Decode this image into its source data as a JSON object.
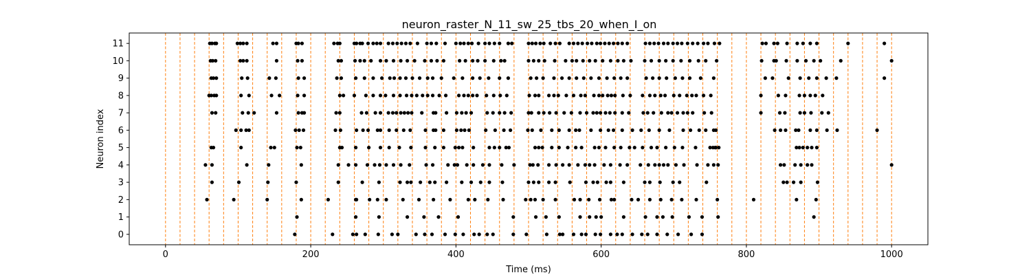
{
  "chart_data": {
    "type": "scatter",
    "title": "neuron_raster_N_11_sw_25_tbs_20_when_I_on",
    "xlabel": "Time (ms)",
    "ylabel": "Neuron index",
    "xlim": [
      -50,
      1050
    ],
    "ylim": [
      -0.6,
      11.6
    ],
    "x_ticks": [
      0,
      200,
      400,
      600,
      800,
      1000
    ],
    "x_tick_labels": [
      "0",
      "200",
      "400",
      "600",
      "800",
      "1000"
    ],
    "y_ticks": [
      0,
      1,
      2,
      3,
      4,
      5,
      6,
      7,
      8,
      9,
      10,
      11
    ],
    "y_tick_labels": [
      "0",
      "1",
      "2",
      "3",
      "4",
      "5",
      "6",
      "7",
      "8",
      "9",
      "10",
      "11"
    ],
    "grid": false,
    "legend": false,
    "colors": {
      "spikes": "#000000",
      "burst_markers": "#ff7f0e",
      "axes": "#000000"
    },
    "vertical_lines": {
      "style": "dashed",
      "x": [
        0,
        20,
        40,
        60,
        80,
        100,
        120,
        140,
        160,
        180,
        200,
        220,
        240,
        260,
        280,
        300,
        320,
        340,
        360,
        380,
        400,
        420,
        440,
        460,
        480,
        500,
        520,
        540,
        560,
        580,
        600,
        620,
        640,
        660,
        680,
        700,
        720,
        740,
        760,
        780,
        800,
        820,
        840,
        860,
        880,
        900,
        920,
        940,
        960,
        980,
        1000
      ]
    },
    "spikes": [
      {
        "neuron": 0,
        "times": [
          178,
          230,
          258,
          263,
          275,
          293,
          312,
          320,
          345,
          357,
          367,
          385,
          399,
          410,
          425,
          432,
          443,
          451,
          479,
          497,
          525,
          543,
          547,
          562,
          573,
          579,
          592,
          599,
          613,
          622,
          629,
          643,
          656,
          664,
          677,
          691,
          706,
          724,
          739
        ]
      },
      {
        "neuron": 1,
        "times": [
          181,
          262,
          294,
          333,
          356,
          376,
          403,
          479,
          510,
          524,
          542,
          571,
          584,
          593,
          600,
          631,
          661,
          677,
          685,
          698,
          721,
          739,
          761,
          893
        ]
      },
      {
        "neuron": 2,
        "times": [
          57,
          94,
          140,
          187,
          224,
          262,
          263,
          281,
          292,
          304,
          327,
          349,
          369,
          392,
          417,
          426,
          444,
          465,
          496,
          503,
          509,
          520,
          537,
          563,
          571,
          583,
          598,
          614,
          618,
          642,
          651,
          667,
          682,
          697,
          711,
          731,
          760,
          810,
          869,
          896
        ]
      },
      {
        "neuron": 3,
        "times": [
          64,
          101,
          141,
          180,
          238,
          271,
          294,
          323,
          333,
          338,
          351,
          364,
          371,
          387,
          408,
          421,
          434,
          446,
          464,
          500,
          507,
          514,
          528,
          537,
          557,
          579,
          589,
          595,
          607,
          613,
          631,
          660,
          667,
          681,
          699,
          708,
          745,
          851,
          856,
          865,
          875,
          898
        ]
      },
      {
        "neuron": 4,
        "times": [
          55,
          64,
          112,
          142,
          187,
          238,
          252,
          262,
          278,
          288,
          295,
          304,
          314,
          324,
          336,
          359,
          368,
          389,
          398,
          402,
          415,
          424,
          437,
          446,
          463,
          480,
          502,
          506,
          513,
          528,
          538,
          547,
          556,
          568,
          578,
          584,
          591,
          604,
          613,
          626,
          636,
          654,
          665,
          674,
          680,
          686,
          692,
          703,
          714,
          732,
          747,
          755,
          761,
          847,
          852,
          867,
          875,
          884,
          890,
          1000
        ]
      },
      {
        "neuron": 5,
        "times": [
          63,
          66,
          104,
          145,
          150,
          181,
          186,
          240,
          243,
          262,
          280,
          296,
          308,
          322,
          338,
          358,
          371,
          383,
          399,
          404,
          409,
          424,
          446,
          453,
          460,
          469,
          473,
          509,
          514,
          519,
          532,
          542,
          554,
          565,
          573,
          591,
          597,
          606,
          618,
          627,
          639,
          646,
          657,
          669,
          677,
          689,
          701,
          712,
          730,
          750,
          754,
          757,
          758,
          762,
          869,
          873,
          878,
          884,
          890,
          897
        ]
      },
      {
        "neuron": 6,
        "times": [
          97,
          104,
          111,
          115,
          179,
          184,
          190,
          234,
          241,
          263,
          272,
          279,
          292,
          296,
          308,
          318,
          328,
          337,
          358,
          369,
          372,
          383,
          401,
          407,
          412,
          418,
          441,
          454,
          466,
          475,
          499,
          505,
          517,
          532,
          542,
          556,
          565,
          570,
          586,
          599,
          610,
          617,
          629,
          643,
          655,
          666,
          680,
          694,
          713,
          723,
          735,
          744,
          755,
          758,
          839,
          847,
          854,
          868,
          872,
          888,
          897,
          911,
          925,
          980
        ]
      },
      {
        "neuron": 7,
        "times": [
          64,
          69,
          106,
          114,
          122,
          153,
          183,
          188,
          191,
          235,
          240,
          270,
          277,
          289,
          296,
          307,
          313,
          318,
          324,
          329,
          334,
          339,
          353,
          369,
          372,
          387,
          401,
          408,
          414,
          421,
          443,
          451,
          460,
          467,
          476,
          500,
          504,
          514,
          521,
          529,
          538,
          549,
          559,
          571,
          580,
          589,
          594,
          599,
          606,
          612,
          619,
          629,
          638,
          658,
          664,
          672,
          683,
          692,
          697,
          705,
          713,
          719,
          726,
          742,
          752,
          820,
          846,
          853,
          874,
          880,
          889,
          904,
          913
        ]
      },
      {
        "neuron": 8,
        "times": [
          60,
          63,
          67,
          70,
          104,
          115,
          146,
          157,
          182,
          191,
          240,
          245,
          260,
          276,
          286,
          296,
          303,
          314,
          323,
          332,
          339,
          346,
          354,
          361,
          368,
          377,
          386,
          404,
          411,
          417,
          423,
          429,
          442,
          452,
          461,
          470,
          501,
          509,
          514,
          528,
          535,
          541,
          552,
          562,
          572,
          578,
          590,
          597,
          602,
          609,
          614,
          619,
          630,
          640,
          657,
          667,
          674,
          682,
          688,
          700,
          708,
          718,
          725,
          731,
          741,
          751,
          820,
          844,
          854,
          873,
          880,
          888,
          895,
          905
        ]
      },
      {
        "neuron": 9,
        "times": [
          63,
          66,
          70,
          105,
          113,
          143,
          152,
          183,
          191,
          236,
          242,
          262,
          274,
          286,
          298,
          309,
          315,
          323,
          331,
          340,
          350,
          361,
          368,
          380,
          397,
          409,
          423,
          433,
          445,
          460,
          472,
          503,
          511,
          520,
          535,
          546,
          556,
          566,
          576,
          586,
          597,
          608,
          618,
          627,
          636,
          662,
          671,
          680,
          690,
          702,
          712,
          722,
          737,
          755,
          826,
          836,
          858,
          874,
          886,
          897,
          910,
          924,
          990
        ]
      },
      {
        "neuron": 10,
        "times": [
          62,
          65,
          69,
          103,
          107,
          112,
          153,
          182,
          188,
          238,
          242,
          261,
          268,
          274,
          283,
          296,
          304,
          314,
          324,
          333,
          343,
          357,
          366,
          374,
          383,
          405,
          413,
          423,
          430,
          440,
          452,
          462,
          467,
          500,
          507,
          514,
          522,
          536,
          551,
          560,
          566,
          575,
          584,
          592,
          602,
          613,
          623,
          631,
          641,
          660,
          669,
          680,
          689,
          699,
          710,
          722,
          734,
          744,
          759,
          821,
          838,
          841,
          855,
          870,
          882,
          893,
          902,
          930,
          1000
        ]
      },
      {
        "neuron": 11,
        "times": [
          61,
          64,
          68,
          70,
          99,
          103,
          107,
          112,
          148,
          153,
          180,
          183,
          188,
          232,
          237,
          240,
          260,
          263,
          268,
          271,
          279,
          286,
          291,
          296,
          307,
          313,
          319,
          325,
          331,
          337,
          347,
          360,
          366,
          373,
          385,
          400,
          406,
          411,
          417,
          422,
          431,
          440,
          446,
          453,
          460,
          472,
          477,
          500,
          505,
          510,
          516,
          521,
          530,
          537,
          543,
          556,
          562,
          568,
          574,
          581,
          587,
          594,
          599,
          605,
          611,
          617,
          623,
          629,
          636,
          661,
          667,
          673,
          679,
          686,
          692,
          699,
          705,
          711,
          719,
          726,
          733,
          741,
          747,
          756,
          763,
          822,
          827,
          838,
          843,
          856,
          870,
          878,
          888,
          897,
          940,
          990
        ]
      }
    ]
  }
}
